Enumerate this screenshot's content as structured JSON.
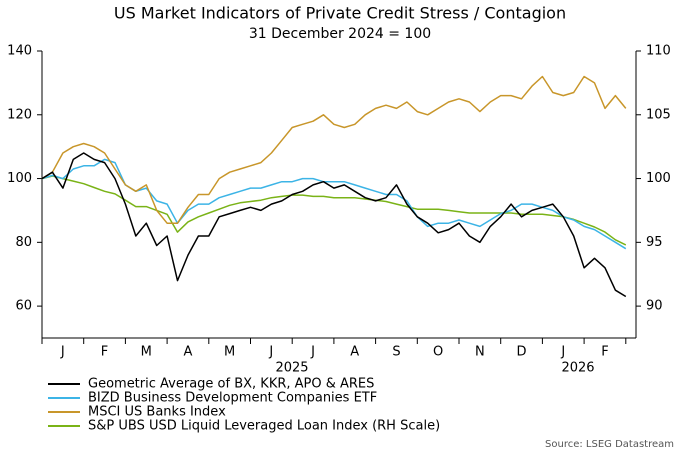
{
  "chart_data": {
    "type": "line",
    "title": "US Market Indicators of Private Credit Stress / Contagion",
    "subtitle": "31 December 2024 = 100",
    "source": "Source: LSEG Datastream",
    "categories": [
      null,
      null,
      "J",
      null,
      null,
      null,
      "F",
      null,
      null,
      null,
      "M",
      null,
      null,
      null,
      "A",
      null,
      null,
      null,
      "M",
      null,
      null,
      null,
      "J",
      null,
      null,
      null,
      "J",
      null,
      null,
      null,
      "A",
      null,
      null,
      null,
      "S",
      null,
      null,
      null,
      "O",
      null,
      null,
      null,
      "N",
      null,
      null,
      null,
      "D",
      null,
      null,
      null,
      "J",
      null,
      null,
      null,
      "F",
      null,
      null
    ],
    "x_group_labels": [
      "2025",
      "2026"
    ],
    "ylim": [
      50,
      140
    ],
    "yticks": [
      60,
      80,
      100,
      120,
      140
    ],
    "y2lim": [
      87.5,
      110
    ],
    "y2ticks": [
      90,
      95,
      100,
      105,
      110
    ],
    "series": [
      {
        "name": "Geometric Average of BX, KKR, APO & ARES",
        "color": "#000000",
        "values": [
          100,
          102,
          97,
          106,
          108,
          106,
          105,
          100,
          92,
          82,
          86,
          79,
          82,
          68,
          76,
          82,
          82,
          88,
          89,
          90,
          91,
          90,
          92,
          93,
          95,
          96,
          98,
          99,
          97,
          98,
          96,
          94,
          93,
          94,
          98,
          92,
          88,
          86,
          83,
          84,
          86,
          82,
          80,
          85,
          88,
          92,
          88,
          90,
          91,
          92,
          88,
          82,
          72,
          75,
          72,
          65,
          63
        ]
      },
      {
        "name": "BIZD Business Development Companies ETF",
        "color": "#3cb4e6",
        "values": [
          100,
          101,
          100,
          103,
          104,
          104,
          106,
          105,
          98,
          96,
          97,
          93,
          92,
          86,
          90,
          92,
          92,
          94,
          95,
          96,
          97,
          97,
          98,
          99,
          99,
          100,
          100,
          99,
          99,
          99,
          98,
          97,
          96,
          95,
          95,
          93,
          88,
          85,
          86,
          86,
          87,
          86,
          85,
          87,
          89,
          90,
          92,
          92,
          91,
          90,
          88,
          87,
          85,
          84,
          82,
          80,
          78
        ]
      },
      {
        "name": "MSCI US Banks Index",
        "color": "#c8962a",
        "values": [
          100,
          102,
          108,
          110,
          111,
          110,
          108,
          103,
          98,
          96,
          98,
          90,
          86,
          86,
          91,
          95,
          95,
          100,
          102,
          103,
          104,
          105,
          108,
          112,
          116,
          117,
          118,
          120,
          117,
          116,
          117,
          120,
          122,
          123,
          122,
          124,
          121,
          120,
          122,
          124,
          125,
          124,
          121,
          124,
          126,
          126,
          125,
          129,
          132,
          127,
          126,
          127,
          132,
          130,
          122,
          126,
          122
        ]
      },
      {
        "name": "S&P UBS USD Liquid Leveraged Loan Index (RH Scale)",
        "color": "#7ab317",
        "axis": "y2",
        "values": [
          100,
          100.2,
          100,
          99.8,
          99.6,
          99.3,
          99,
          98.8,
          98.3,
          97.8,
          97.8,
          97.5,
          97.2,
          95.8,
          96.6,
          97,
          97.3,
          97.6,
          97.9,
          98.1,
          98.2,
          98.3,
          98.5,
          98.6,
          98.7,
          98.7,
          98.6,
          98.6,
          98.5,
          98.5,
          98.5,
          98.4,
          98.3,
          98.2,
          98,
          97.8,
          97.6,
          97.6,
          97.6,
          97.5,
          97.4,
          97.3,
          97.3,
          97.3,
          97.3,
          97.3,
          97.2,
          97.2,
          97.2,
          97.1,
          97,
          96.8,
          96.5,
          96.2,
          95.8,
          95.2,
          94.8
        ]
      }
    ]
  }
}
